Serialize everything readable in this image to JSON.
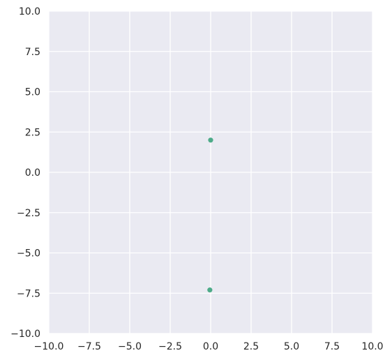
{
  "chart_data": {
    "type": "scatter",
    "title": "",
    "xlabel": "",
    "ylabel": "",
    "xlim": [
      -10,
      10
    ],
    "ylim": [
      -10,
      10
    ],
    "grid": true,
    "background_color": "#EAEAF2",
    "grid_color": "#FFFFFF",
    "point_color": "#4DAB89",
    "xticks": [
      -10.0,
      -7.5,
      -5.0,
      -2.5,
      0.0,
      2.5,
      5.0,
      7.5,
      10.0
    ],
    "xtick_labels": [
      "−10.0",
      "−7.5",
      "−5.0",
      "−2.5",
      "0.0",
      "2.5",
      "5.0",
      "7.5",
      "10.0"
    ],
    "yticks": [
      10.0,
      7.5,
      5.0,
      2.5,
      0.0,
      -2.5,
      -5.0,
      -7.5,
      -10.0
    ],
    "ytick_labels": [
      "10.0",
      "7.5",
      "5.0",
      "2.5",
      "0.0",
      "−2.5",
      "−5.0",
      "−7.5",
      "−10.0"
    ],
    "series": [
      {
        "points": [
          {
            "x": 0.0,
            "y": 2.0
          },
          {
            "x": -0.05,
            "y": -7.3
          }
        ]
      }
    ]
  }
}
